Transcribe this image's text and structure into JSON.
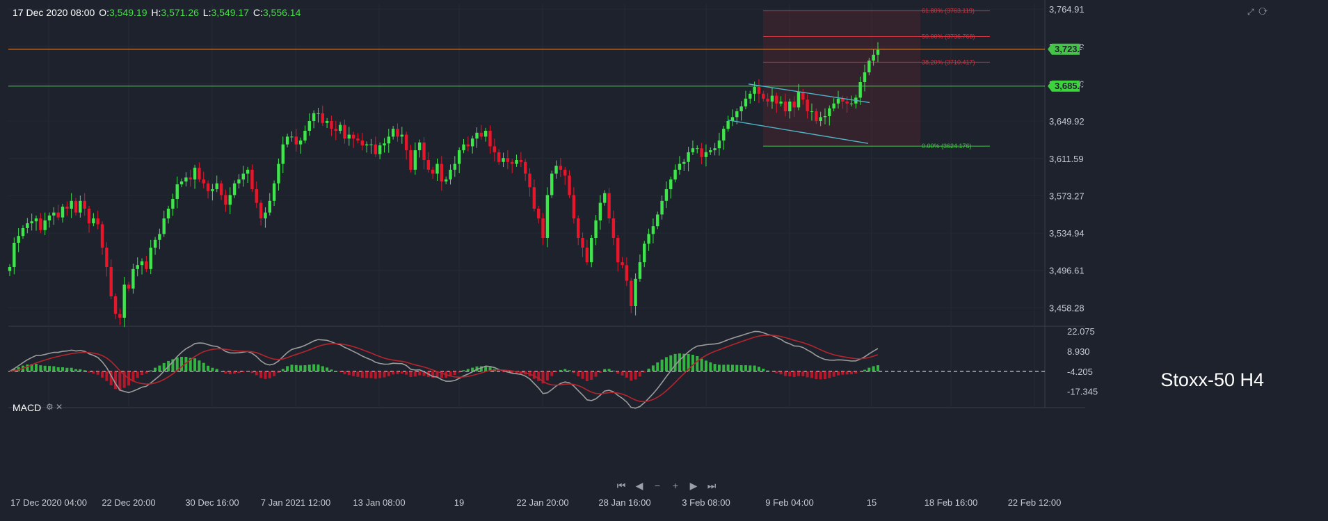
{
  "header": {
    "date": "17 Dec 2020 08:00",
    "o_label": "O:",
    "o": "3,549.19",
    "h_label": "H:",
    "h": "3,571.26",
    "l_label": "L:",
    "l": "3,549.17",
    "c_label": "C:",
    "c": "3,556.14"
  },
  "watermark": "Stoxx-50 H4",
  "macd": {
    "label": "MACD",
    "settings_icon": "gear-icon",
    "close_icon": "close-icon"
  },
  "top_icons": [
    "expand-icon",
    "refresh-icon"
  ],
  "navigation": {
    "icons": [
      "jump-start-icon",
      "scroll-left-icon",
      "zoom-out-icon",
      "zoom-in-icon",
      "scroll-right-icon",
      "jump-end-icon"
    ]
  },
  "colors": {
    "background": "#1e222d",
    "up": "#3ee64b",
    "down": "#e8162b",
    "fib": "#d4303d",
    "fib_zero": "#45c548",
    "resistance": "#c97a3a",
    "support": "#39c63d",
    "channel": "#4fb5c9",
    "macd_line": "#9c9c9c",
    "signal_line": "#b5252d",
    "price_tag_1": "#45c548",
    "price_tag_2": "#3dd33d"
  },
  "chart_data": {
    "type": "candlestick",
    "title": "Stoxx-50 H4",
    "ylim": [
      3440,
      3770
    ],
    "y_ticks": [
      "3,764.91",
      "3,726.59",
      "3,688.26",
      "3,649.92",
      "3,611.59",
      "3,573.27",
      "3,534.94",
      "3,496.61",
      "3,458.28"
    ],
    "x_ticks": [
      "17 Dec 2020 04:00",
      "22 Dec 20:00",
      "30 Dec 16:00",
      "7 Jan 2021 12:00",
      "13 Jan 08:00",
      "19",
      "22 Jan 20:00",
      "28 Jan 16:00",
      "3 Feb 08:00",
      "9 Feb 04:00",
      "15",
      "18 Feb 16:00",
      "22 Feb 12:00"
    ],
    "price_labels": [
      {
        "value": "3,723.75",
        "level": 3723.75
      },
      {
        "value": "3,685.86",
        "level": 3685.86
      }
    ],
    "horizontal_lines": [
      {
        "name": "resistance",
        "level": 3723.75
      },
      {
        "name": "support",
        "level": 3685.86
      }
    ],
    "fibonacci": {
      "high": 3763.119,
      "low": 3624.176,
      "levels": [
        {
          "label": "61.80% (3763.119)",
          "value": 3763.119
        },
        {
          "label": "50.00% (3736.768)",
          "value": 3736.768
        },
        {
          "label": "38.20% (3710.417)",
          "value": 3710.417
        },
        {
          "label": "0.00% (3624.176)",
          "value": 3624.176
        }
      ]
    },
    "channel": {
      "upper": [
        [
          1076,
          3688
        ],
        [
          1250,
          3669
        ]
      ],
      "lower": [
        [
          1046,
          3651
        ],
        [
          1248,
          3627
        ]
      ]
    },
    "closes": [
      3500,
      3525,
      3532,
      3540,
      3545,
      3547,
      3550,
      3538,
      3548,
      3553,
      3556,
      3551,
      3562,
      3560,
      3568,
      3556,
      3568,
      3560,
      3545,
      3550,
      3544,
      3520,
      3500,
      3470,
      3452,
      3448,
      3482,
      3478,
      3498,
      3502,
      3506,
      3498,
      3520,
      3528,
      3534,
      3550,
      3560,
      3570,
      3585,
      3588,
      3592,
      3590,
      3602,
      3590,
      3586,
      3578,
      3580,
      3586,
      3574,
      3564,
      3574,
      3586,
      3590,
      3596,
      3600,
      3580,
      3566,
      3550,
      3556,
      3568,
      3586,
      3606,
      3626,
      3634,
      3634,
      3626,
      3630,
      3640,
      3650,
      3658,
      3658,
      3648,
      3650,
      3642,
      3640,
      3646,
      3632,
      3636,
      3632,
      3630,
      3625,
      3626,
      3626,
      3616,
      3625,
      3627,
      3634,
      3642,
      3634,
      3636,
      3620,
      3600,
      3620,
      3628,
      3610,
      3600,
      3596,
      3606,
      3588,
      3590,
      3600,
      3606,
      3620,
      3626,
      3624,
      3632,
      3638,
      3634,
      3640,
      3624,
      3618,
      3608,
      3612,
      3608,
      3606,
      3610,
      3608,
      3596,
      3582,
      3560,
      3550,
      3530,
      3574,
      3596,
      3604,
      3600,
      3594,
      3574,
      3550,
      3530,
      3520,
      3505,
      3530,
      3548,
      3566,
      3576,
      3550,
      3530,
      3505,
      3502,
      3486,
      3460,
      3488,
      3505,
      3524,
      3534,
      3542,
      3554,
      3568,
      3580,
      3590,
      3600,
      3606,
      3608,
      3618,
      3622,
      3622,
      3613,
      3618,
      3620,
      3622,
      3630,
      3642,
      3650,
      3654,
      3660,
      3665,
      3673,
      3678,
      3685,
      3678,
      3673,
      3670,
      3676,
      3668,
      3670,
      3660,
      3670,
      3664,
      3680,
      3672,
      3660,
      3660,
      3650,
      3654,
      3655,
      3663,
      3668,
      3673,
      3670,
      3668,
      3668,
      3674,
      3690,
      3700,
      3712,
      3718,
      3723
    ]
  },
  "macd_data": {
    "ylim": [
      -28,
      24
    ],
    "y_ticks": [
      "22.075",
      "8.930",
      "-4.205",
      "-17.345"
    ],
    "zero_level": -4.205
  }
}
